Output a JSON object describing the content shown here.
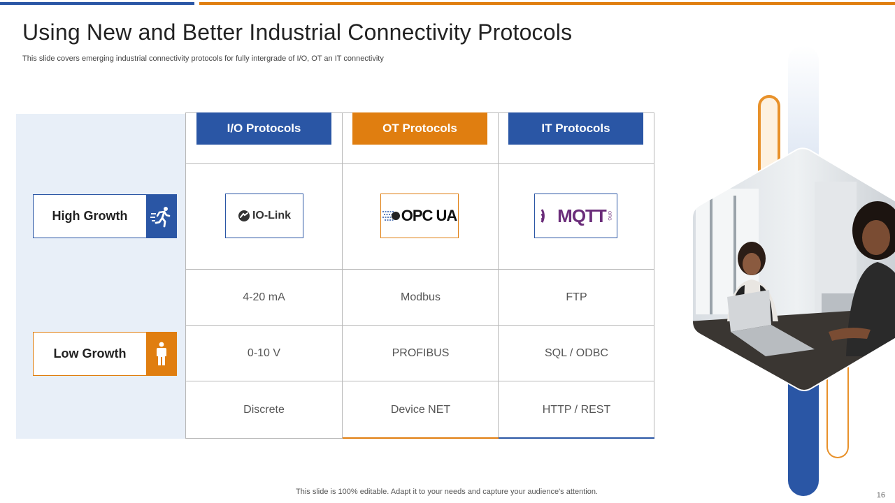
{
  "slide": {
    "title": "Using New and Better Industrial Connectivity Protocols",
    "subtitle": "This slide covers emerging industrial connectivity protocols for fully intergrade of I/O,  OT  an IT  connectivity",
    "footer": "This slide is 100% editable. Adapt it to your needs and capture your audience's attention.",
    "page_number": "16"
  },
  "growth": {
    "high": {
      "label": "High Growth",
      "icon": "running-person-icon"
    },
    "low": {
      "label": "Low Growth",
      "icon": "standing-person-icon"
    }
  },
  "columns": [
    {
      "header": "I/O Protocols",
      "logo_text": "IO-Link",
      "rows": [
        "4-20 mA",
        "0-10 V",
        "Discrete"
      ]
    },
    {
      "header": "OT Protocols",
      "logo_text": "OPC UA",
      "rows": [
        "Modbus",
        "PROFIBUS",
        "Device NET"
      ]
    },
    {
      "header": "IT Protocols",
      "logo_text": "MQTT",
      "logo_subtext": "ORG",
      "rows": [
        "FTP",
        "SQL / ODBC",
        "HTTP / REST"
      ]
    }
  ],
  "colors": {
    "blue": "#2a56a5",
    "orange": "#e07e10",
    "panel": "#e8eff8",
    "mqtt_purple": "#6b2d7a"
  }
}
